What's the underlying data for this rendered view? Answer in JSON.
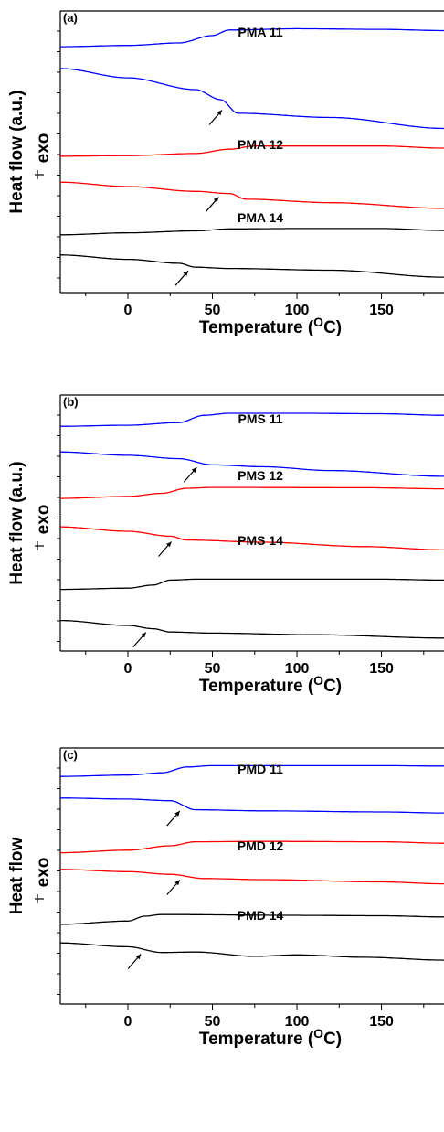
{
  "chart_data": [
    {
      "type": "line",
      "panel_label": "(a)",
      "xlabel": "Temperature (",
      "xlabel_sup": "O",
      "xlabel_end": "C)",
      "ylabel": "Heat flow (a.u.)",
      "exo_label": "exo",
      "xlim": [
        -40,
        187
      ],
      "xticks": [
        0,
        50,
        100,
        150
      ],
      "grid": false,
      "series": [
        {
          "name": "PMA 11",
          "color": "#0000ff",
          "trace": "heating",
          "points": [
            [
              -40,
              2.5
            ],
            [
              0,
              2.7
            ],
            [
              30,
              3.1
            ],
            [
              50,
              4.3
            ],
            [
              60,
              5.2
            ],
            [
              100,
              5.4
            ],
            [
              150,
              5.3
            ],
            [
              187,
              5.1
            ]
          ]
        },
        {
          "name": "",
          "color": "#0000ff",
          "trace": "cooling",
          "arrow_x": 60,
          "points": [
            [
              -40,
              6.4
            ],
            [
              0,
              5.3
            ],
            [
              40,
              3.9
            ],
            [
              55,
              2.7
            ],
            [
              65,
              1.1
            ],
            [
              120,
              0.6
            ],
            [
              187,
              -0.7
            ]
          ]
        },
        {
          "name": "PMA 12",
          "color": "#ff0000",
          "trace": "heating",
          "points": [
            [
              -40,
              2.6
            ],
            [
              0,
              2.7
            ],
            [
              40,
              3.1
            ],
            [
              60,
              3.9
            ],
            [
              75,
              4.5
            ],
            [
              150,
              4.5
            ],
            [
              187,
              4.1
            ]
          ]
        },
        {
          "name": "",
          "color": "#ff0000",
          "trace": "cooling",
          "arrow_x": 58,
          "points": [
            [
              -40,
              5.4
            ],
            [
              0,
              4.4
            ],
            [
              40,
              3.3
            ],
            [
              60,
              2.8
            ],
            [
              70,
              1.5
            ],
            [
              120,
              0.7
            ],
            [
              187,
              -0.6
            ]
          ]
        },
        {
          "name": "PMA 14",
          "color": "#000000",
          "trace": "heating",
          "points": [
            [
              -40,
              2.6
            ],
            [
              0,
              3.1
            ],
            [
              40,
              3.6
            ],
            [
              60,
              4.1
            ],
            [
              100,
              4.2
            ],
            [
              150,
              4.2
            ],
            [
              187,
              3.7
            ]
          ]
        },
        {
          "name": "",
          "color": "#000000",
          "trace": "cooling",
          "arrow_x": 40,
          "points": [
            [
              -40,
              5.7
            ],
            [
              0,
              4.7
            ],
            [
              30,
              3.8
            ],
            [
              40,
              2.9
            ],
            [
              60,
              2.6
            ],
            [
              120,
              2.2
            ],
            [
              187,
              0.6
            ]
          ]
        }
      ]
    },
    {
      "type": "line",
      "panel_label": "(b)",
      "xlabel": "Temperature (",
      "xlabel_sup": "O",
      "xlabel_end": "C)",
      "ylabel": "Heat flow (a.u.)",
      "exo_label": "exo",
      "xlim": [
        -40,
        187
      ],
      "xticks": [
        0,
        50,
        100,
        150
      ],
      "grid": false,
      "series": [
        {
          "name": "PMS 11",
          "color": "#0000ff",
          "trace": "heating",
          "points": [
            [
              -40,
              2.6
            ],
            [
              0,
              2.8
            ],
            [
              30,
              3.3
            ],
            [
              45,
              4.7
            ],
            [
              60,
              5.1
            ],
            [
              100,
              5.1
            ],
            [
              150,
              5.0
            ],
            [
              187,
              4.7
            ]
          ]
        },
        {
          "name": "",
          "color": "#0000ff",
          "trace": "cooling",
          "arrow_x": 45,
          "points": [
            [
              -40,
              5.5
            ],
            [
              0,
              4.8
            ],
            [
              30,
              4.1
            ],
            [
              50,
              2.8
            ],
            [
              80,
              2.4
            ],
            [
              120,
              1.6
            ],
            [
              187,
              0.4
            ]
          ]
        },
        {
          "name": "PMS 12",
          "color": "#ff0000",
          "trace": "heating",
          "points": [
            [
              -40,
              1.6
            ],
            [
              0,
              2.3
            ],
            [
              20,
              3.4
            ],
            [
              35,
              5.2
            ],
            [
              50,
              5.5
            ],
            [
              140,
              5.4
            ],
            [
              187,
              5.0
            ]
          ]
        },
        {
          "name": "",
          "color": "#ff0000",
          "trace": "cooling",
          "arrow_x": 30,
          "points": [
            [
              -40,
              5.3
            ],
            [
              0,
              4.5
            ],
            [
              25,
              3.6
            ],
            [
              35,
              2.9
            ],
            [
              80,
              2.5
            ],
            [
              140,
              1.7
            ],
            [
              187,
              1.1
            ]
          ]
        },
        {
          "name": "PMS 14",
          "color": "#000000",
          "trace": "heating",
          "points": [
            [
              -40,
              1.6
            ],
            [
              0,
              2.0
            ],
            [
              15,
              3.0
            ],
            [
              25,
              4.6
            ],
            [
              40,
              4.9
            ],
            [
              150,
              4.9
            ],
            [
              187,
              4.6
            ]
          ]
        },
        {
          "name": "",
          "color": "#000000",
          "trace": "cooling",
          "arrow_x": 15,
          "points": [
            [
              -40,
              5.4
            ],
            [
              0,
              4.5
            ],
            [
              15,
              3.9
            ],
            [
              25,
              3.3
            ],
            [
              50,
              3.1
            ],
            [
              110,
              2.8
            ],
            [
              187,
              2.2
            ]
          ]
        }
      ]
    },
    {
      "type": "line",
      "panel_label": "(c)",
      "xlabel": "Temperature (",
      "xlabel_sup": "O",
      "xlabel_end": "C)",
      "ylabel": "Heat flow",
      "exo_label": "exo",
      "xlim": [
        -40,
        187
      ],
      "xticks": [
        0,
        50,
        100,
        150
      ],
      "grid": false,
      "series": [
        {
          "name": "PMD 11",
          "color": "#0000ff",
          "trace": "heating",
          "points": [
            [
              -40,
              2.2
            ],
            [
              0,
              2.5
            ],
            [
              20,
              3.0
            ],
            [
              35,
              4.3
            ],
            [
              50,
              4.6
            ],
            [
              150,
              4.6
            ],
            [
              187,
              4.5
            ]
          ]
        },
        {
          "name": "",
          "color": "#0000ff",
          "trace": "cooling",
          "arrow_x": 35,
          "points": [
            [
              -40,
              5.0
            ],
            [
              0,
              4.8
            ],
            [
              25,
              4.5
            ],
            [
              40,
              2.8
            ],
            [
              80,
              2.6
            ],
            [
              150,
              2.4
            ],
            [
              187,
              2.2
            ]
          ]
        },
        {
          "name": "PMD 12",
          "color": "#ff0000",
          "trace": "heating",
          "points": [
            [
              -40,
              1.6
            ],
            [
              0,
              2.3
            ],
            [
              25,
              3.5
            ],
            [
              40,
              4.6
            ],
            [
              80,
              4.7
            ],
            [
              150,
              4.6
            ],
            [
              187,
              4.2
            ]
          ]
        },
        {
          "name": "",
          "color": "#ff0000",
          "trace": "cooling",
          "arrow_x": 35,
          "points": [
            [
              -40,
              5.1
            ],
            [
              0,
              4.5
            ],
            [
              25,
              3.8
            ],
            [
              45,
              2.7
            ],
            [
              80,
              2.4
            ],
            [
              150,
              1.8
            ],
            [
              187,
              1.3
            ]
          ]
        },
        {
          "name": "PMD 14",
          "color": "#000000",
          "trace": "heating",
          "points": [
            [
              -40,
              1.6
            ],
            [
              0,
              2.4
            ],
            [
              10,
              3.6
            ],
            [
              20,
              4.0
            ],
            [
              100,
              3.8
            ],
            [
              150,
              3.7
            ],
            [
              187,
              3.4
            ]
          ]
        },
        {
          "name": "",
          "color": "#000000",
          "trace": "cooling",
          "arrow_x": 12,
          "points": [
            [
              -40,
              5.5
            ],
            [
              0,
              4.7
            ],
            [
              20,
              3.5
            ],
            [
              40,
              3.6
            ],
            [
              75,
              2.7
            ],
            [
              100,
              3.0
            ],
            [
              140,
              2.5
            ],
            [
              187,
              1.9
            ]
          ]
        }
      ]
    }
  ]
}
